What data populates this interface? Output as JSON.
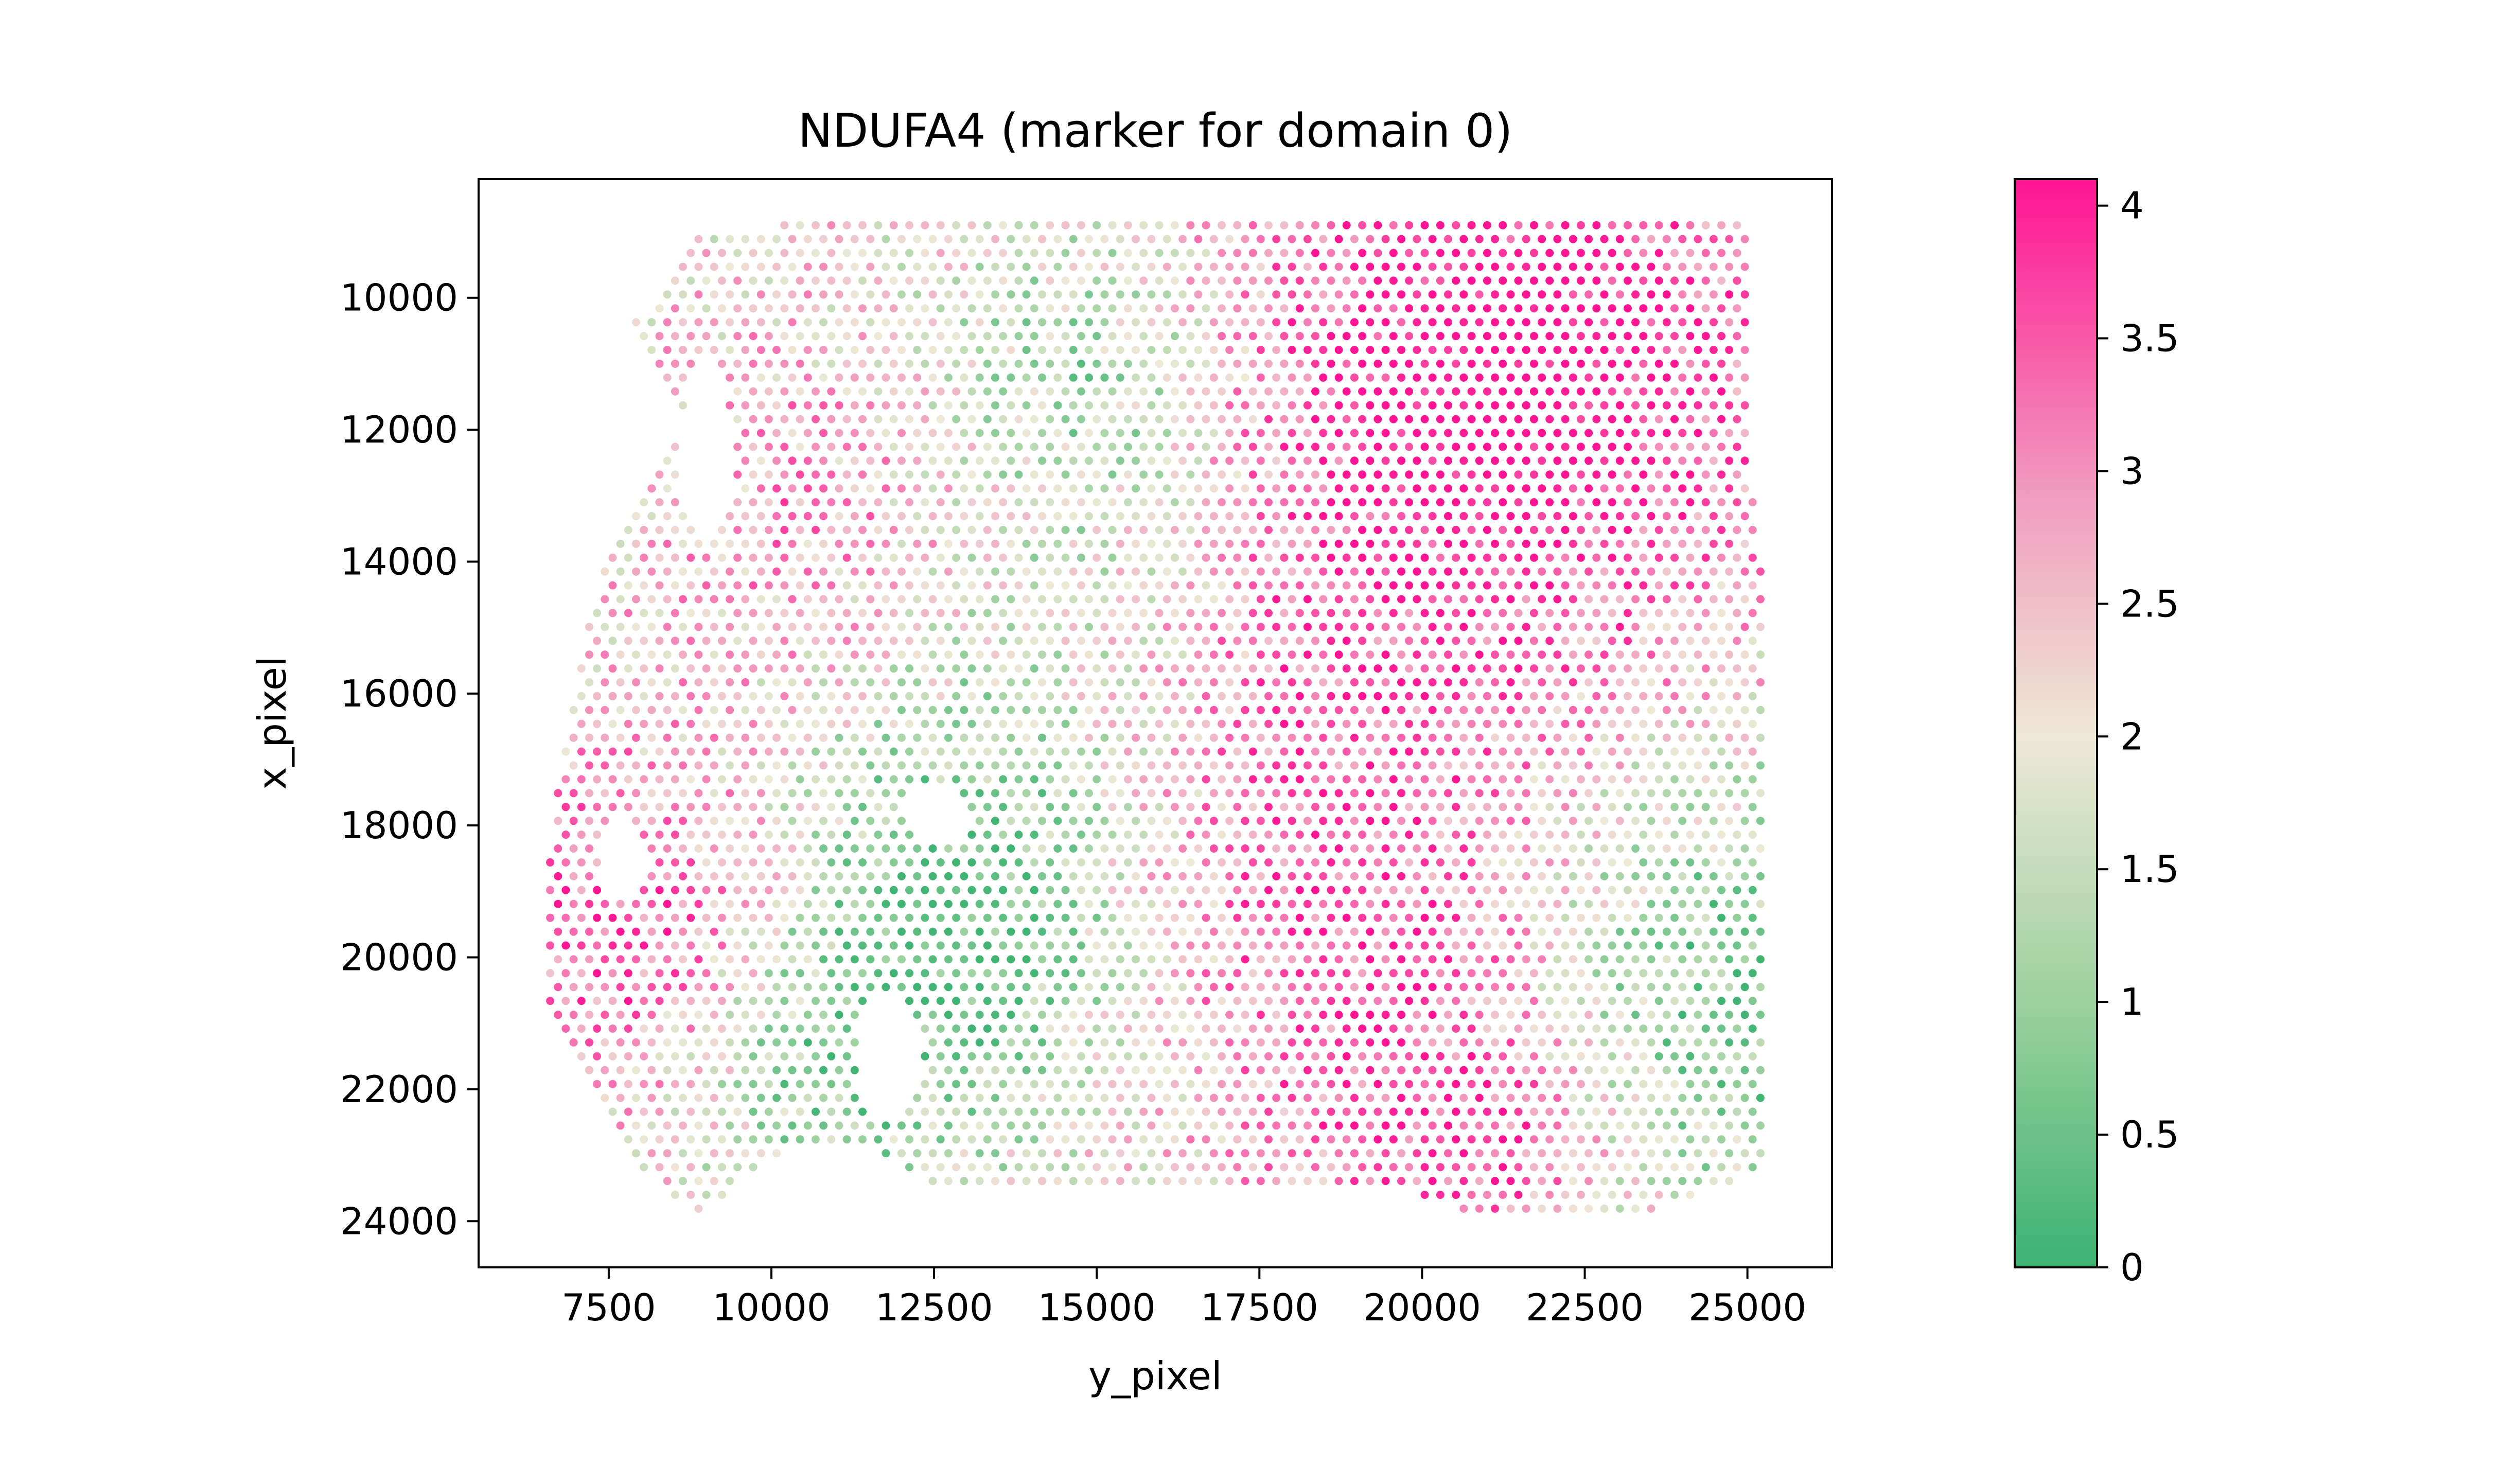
{
  "chart_data": {
    "type": "scatter",
    "title": "NDUFA4 (marker for domain 0)",
    "xlabel": "y_pixel",
    "ylabel": "x_pixel",
    "xlim": [
      5500,
      26300
    ],
    "ylim": [
      24700,
      8200
    ],
    "y_inverted": true,
    "grid": false,
    "legend": "none",
    "x_ticks": [
      7500,
      10000,
      12500,
      15000,
      17500,
      20000,
      22500,
      25000
    ],
    "x_tick_labels": [
      "7500",
      "10000",
      "12500",
      "15000",
      "17500",
      "20000",
      "22500",
      "25000"
    ],
    "y_ticks": [
      10000,
      12000,
      14000,
      16000,
      18000,
      20000,
      22000,
      24000
    ],
    "y_tick_labels": [
      "10000",
      "12000",
      "14000",
      "16000",
      "18000",
      "20000",
      "22000",
      "24000"
    ],
    "spot_grid": {
      "x_range": [
        6600,
        25300
      ],
      "y_range": [
        8900,
        23900
      ],
      "row_spacing": 210,
      "col_spacing": 240,
      "stagger": 120
    },
    "tissue_boundary": [
      [
        8700,
        9100
      ],
      [
        10000,
        8900
      ],
      [
        25000,
        8900
      ],
      [
        25000,
        12600
      ],
      [
        25300,
        14400
      ],
      [
        25300,
        23200
      ],
      [
        24000,
        23700
      ],
      [
        23000,
        24000
      ],
      [
        21000,
        24000
      ],
      [
        20000,
        23600
      ],
      [
        18000,
        23500
      ],
      [
        12500,
        23500
      ],
      [
        11500,
        22800
      ],
      [
        10000,
        23000
      ],
      [
        9000,
        23900
      ],
      [
        8200,
        23400
      ],
      [
        7500,
        22500
      ],
      [
        6600,
        20800
      ],
      [
        6600,
        18300
      ],
      [
        6900,
        16200
      ],
      [
        7300,
        14500
      ],
      [
        7700,
        13300
      ],
      [
        8700,
        11800
      ],
      [
        8200,
        11000
      ],
      [
        7900,
        10400
      ]
    ],
    "holes": [
      {
        "center": [
          9000,
          12300
        ],
        "radius": [
          400,
          1400
        ]
      },
      {
        "center": [
          12500,
          17800
        ],
        "radius": [
          500,
          500
        ]
      },
      {
        "center": [
          11800,
          21500
        ],
        "radius": [
          500,
          900
        ]
      },
      {
        "center": [
          7700,
          18500
        ],
        "radius": [
          350,
          600
        ]
      }
    ],
    "hotspots": [
      {
        "center": [
          8000,
          19500
        ],
        "weight": 1.6,
        "radius": 2000
      },
      {
        "center": [
          11200,
          13500
        ],
        "weight": 1.3,
        "radius": 2200
      },
      {
        "center": [
          19500,
          12500
        ],
        "weight": 1.5,
        "radius": 3500
      },
      {
        "center": [
          22000,
          10500
        ],
        "weight": 1.3,
        "radius": 3000
      },
      {
        "center": [
          16500,
          17000
        ],
        "weight": 1.0,
        "radius": 2500
      },
      {
        "center": [
          19500,
          20500
        ],
        "weight": 1.3,
        "radius": 2500
      },
      {
        "center": [
          21000,
          23000
        ],
        "weight": 1.2,
        "radius": 1500
      },
      {
        "center": [
          14500,
          15000
        ],
        "weight": -1.5,
        "radius": 3000
      },
      {
        "center": [
          12800,
          19500
        ],
        "weight": -1.8,
        "radius": 2200
      },
      {
        "center": [
          24500,
          20500
        ],
        "weight": -1.7,
        "radius": 2600
      },
      {
        "center": [
          15000,
          11000
        ],
        "weight": -1.2,
        "radius": 1800
      },
      {
        "center": [
          10500,
          21800
        ],
        "weight": -1.0,
        "radius": 1500
      }
    ],
    "colorbar": {
      "min": 0,
      "max": 4.1,
      "ticks": [
        0,
        0.5,
        1,
        1.5,
        2,
        2.5,
        3,
        3.5,
        4
      ],
      "tick_labels": [
        "0",
        "0.5",
        "1",
        "1.5",
        "2",
        "2.5",
        "3",
        "3.5",
        "4"
      ],
      "colormap": [
        {
          "stop": 0.0,
          "color": "#3cb371"
        },
        {
          "stop": 0.25,
          "color": "#9ed1a0"
        },
        {
          "stop": 0.488,
          "color": "#eee8d5"
        },
        {
          "stop": 0.7,
          "color": "#f0a0c0"
        },
        {
          "stop": 1.0,
          "color": "#ff1493"
        }
      ]
    }
  }
}
